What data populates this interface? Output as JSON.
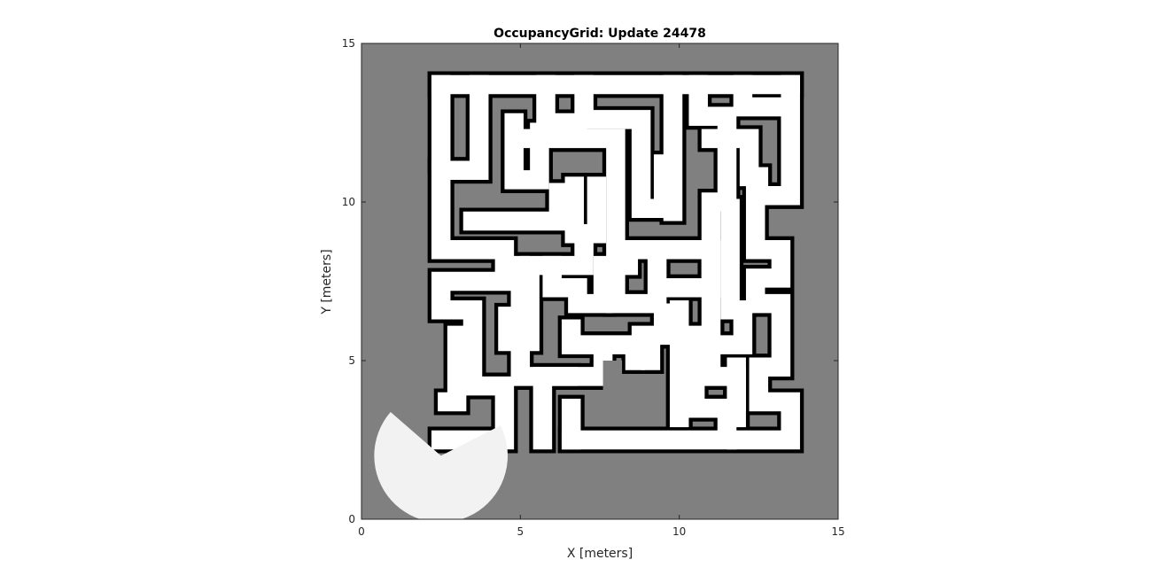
{
  "chart_data": {
    "type": "heatmap",
    "title": "OccupancyGrid: Update 24478",
    "xlabel": "X [meters]",
    "ylabel": "Y [meters]",
    "xlim": [
      0,
      15
    ],
    "ylim": [
      0,
      15
    ],
    "xticks": [
      "0",
      "5",
      "10",
      "15"
    ],
    "yticks": [
      "0",
      "5",
      "10",
      "15"
    ],
    "grid": false,
    "colormap": "grayscale",
    "colors": {
      "unknown": "#808080",
      "free": "#ffffff",
      "occupied": "#000000",
      "axis": "#262626"
    },
    "corridor_width_m": 0.6,
    "wall_thickness_m": 0.12,
    "free_corridors_m": [
      [
        [
          2.5,
          13.7
        ],
        [
          13.5,
          13.7
        ]
      ],
      [
        [
          2.5,
          13.7
        ],
        [
          2.5,
          11.3
        ]
      ],
      [
        [
          3.7,
          13.7
        ],
        [
          3.7,
          11.0
        ],
        [
          2.5,
          11.0
        ],
        [
          2.5,
          8.5
        ],
        [
          4.5,
          8.5
        ],
        [
          4.5,
          7.5
        ],
        [
          2.5,
          7.5
        ],
        [
          2.5,
          6.6
        ],
        [
          3.5,
          6.6
        ],
        [
          3.5,
          4.2
        ],
        [
          4.5,
          4.2
        ],
        [
          4.5,
          2.5
        ],
        [
          2.5,
          2.5
        ]
      ],
      [
        [
          2.7,
          3.7
        ],
        [
          3.0,
          3.7
        ],
        [
          3.0,
          5.8
        ]
      ],
      [
        [
          5.8,
          13.7
        ],
        [
          5.8,
          12.5
        ],
        [
          6.8,
          12.5
        ]
      ],
      [
        [
          7.0,
          13.7
        ],
        [
          7.0,
          12.6
        ],
        [
          8.8,
          12.6
        ],
        [
          8.8,
          9.8
        ],
        [
          9.5,
          9.8
        ],
        [
          9.5,
          11.2
        ]
      ],
      [
        [
          9.8,
          13.7
        ],
        [
          9.8,
          9.7
        ]
      ],
      [
        [
          4.8,
          12.5
        ],
        [
          4.8,
          10.7
        ],
        [
          5.6,
          10.7
        ],
        [
          5.6,
          12.2
        ],
        [
          6.0,
          12.2
        ]
      ],
      [
        [
          5.2,
          12.0
        ],
        [
          8.0,
          12.0
        ],
        [
          8.0,
          8.5
        ],
        [
          10.6,
          8.5
        ]
      ],
      [
        [
          3.5,
          9.4
        ],
        [
          6.2,
          9.4
        ],
        [
          6.2,
          10.3
        ]
      ],
      [
        [
          6.7,
          10.5
        ],
        [
          6.7,
          9.0
        ]
      ],
      [
        [
          7.4,
          10.5
        ],
        [
          7.4,
          9.0
        ]
      ],
      [
        [
          7.0,
          9.0
        ],
        [
          7.0,
          8.0
        ],
        [
          5.3,
          8.0
        ],
        [
          5.3,
          5.6
        ],
        [
          4.6,
          5.6
        ],
        [
          4.6,
          6.4
        ]
      ],
      [
        [
          5.0,
          8.0
        ],
        [
          5.0,
          4.5
        ],
        [
          6.5,
          4.5
        ]
      ],
      [
        [
          6.0,
          8.0
        ],
        [
          6.0,
          7.3
        ],
        [
          6.8,
          7.3
        ],
        [
          6.8,
          6.8
        ],
        [
          7.6,
          6.8
        ],
        [
          7.6,
          8.0
        ],
        [
          8.4,
          8.0
        ]
      ],
      [
        [
          8.0,
          7.6
        ],
        [
          8.0,
          6.8
        ],
        [
          9.3,
          6.8
        ]
      ],
      [
        [
          9.3,
          8.0
        ],
        [
          9.3,
          7.3
        ],
        [
          11.0,
          7.3
        ],
        [
          11.0,
          8.5
        ]
      ],
      [
        [
          8.8,
          5.8
        ],
        [
          9.1,
          5.8
        ],
        [
          9.1,
          5.0
        ]
      ],
      [
        [
          6.6,
          6.0
        ],
        [
          6.6,
          5.5
        ],
        [
          8.6,
          5.5
        ],
        [
          8.6,
          5.0
        ]
      ],
      [
        [
          7.6,
          5.0
        ],
        [
          7.6,
          4.5
        ],
        [
          5.7,
          4.5
        ],
        [
          5.7,
          2.5
        ]
      ],
      [
        [
          6.6,
          2.5
        ],
        [
          6.6,
          3.5
        ]
      ],
      [
        [
          9.5,
          6.5
        ],
        [
          9.5,
          5.8
        ],
        [
          10.5,
          5.8
        ],
        [
          10.5,
          3.5
        ],
        [
          11.5,
          3.5
        ],
        [
          11.5,
          2.5
        ],
        [
          6.6,
          2.5
        ]
      ],
      [
        [
          10.0,
          6.6
        ],
        [
          10.0,
          3.2
        ]
      ],
      [
        [
          11.8,
          2.5
        ],
        [
          13.5,
          2.5
        ],
        [
          13.5,
          3.7
        ],
        [
          12.5,
          3.7
        ],
        [
          12.5,
          4.8
        ],
        [
          13.2,
          4.8
        ],
        [
          13.2,
          6.8
        ],
        [
          12.4,
          6.8
        ],
        [
          12.4,
          7.6
        ],
        [
          13.2,
          7.6
        ],
        [
          13.2,
          8.5
        ],
        [
          12.4,
          8.5
        ],
        [
          12.4,
          10.2
        ],
        [
          13.5,
          10.2
        ],
        [
          13.5,
          13.7
        ]
      ],
      [
        [
          10.6,
          13.7
        ],
        [
          10.6,
          12.7
        ],
        [
          11.5,
          12.7
        ],
        [
          11.5,
          10.0
        ],
        [
          11.0,
          10.0
        ],
        [
          11.0,
          4.5
        ],
        [
          11.8,
          4.5
        ],
        [
          11.8,
          3.7
        ]
      ],
      [
        [
          11.0,
          12.0
        ],
        [
          12.2,
          12.0
        ],
        [
          12.2,
          10.8
        ],
        [
          12.5,
          10.8
        ]
      ],
      [
        [
          12.0,
          13.7
        ],
        [
          12.0,
          13.0
        ],
        [
          13.2,
          13.0
        ]
      ],
      [
        [
          11.6,
          9.8
        ],
        [
          11.6,
          6.6
        ],
        [
          12.0,
          6.6
        ],
        [
          12.0,
          5.5
        ],
        [
          11.5,
          5.5
        ]
      ],
      [
        [
          11.8,
          4.8
        ],
        [
          11.8,
          3.2
        ]
      ]
    ],
    "free_sector_m": {
      "cx": 2.5,
      "cy": 2.0,
      "r": 2.1,
      "start_deg": 139,
      "end_deg": 387
    },
    "unknown_patch_m": [
      [
        7.6,
        3.8
      ],
      [
        8.2,
        3.8
      ],
      [
        8.2,
        5.0
      ],
      [
        7.6,
        5.0
      ]
    ]
  }
}
